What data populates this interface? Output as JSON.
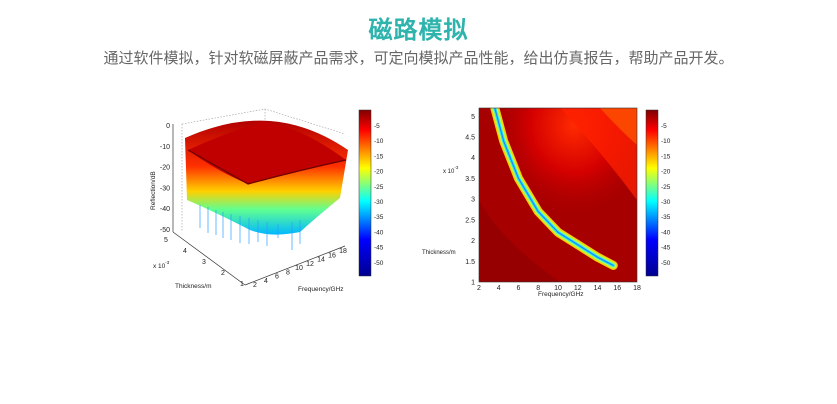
{
  "header": {
    "title": "磁路模拟",
    "subtitle": "通过软件模拟，针对软磁屏蔽产品需求，可定向模拟产品性能，给出仿真报告，帮助产品开发。"
  },
  "colors": {
    "accent": "#2fb3ad",
    "subtitle": "#666666"
  },
  "chart_data": [
    {
      "type": "surface",
      "ylabel": "Reflection/dB",
      "xlabel": "Frequency/GHz",
      "depth_label": "Thickness/m",
      "thickness_multiplier": "x 10",
      "thickness_exponent": "-3",
      "z_ticks": [
        "0",
        "-10",
        "-20",
        "-30",
        "-40",
        "-50"
      ],
      "thickness_ticks": [
        "5",
        "4",
        "3",
        "2",
        "1"
      ],
      "frequency_ticks": [
        "2",
        "4",
        "6",
        "8",
        "10",
        "12",
        "14",
        "16",
        "18"
      ],
      "colorbar_ticks": [
        "-5",
        "-10",
        "-15",
        "-20",
        "-25",
        "-30",
        "-35",
        "-40",
        "-45",
        "-50"
      ],
      "zlim": [
        -50,
        0
      ]
    },
    {
      "type": "heatmap",
      "xlabel": "Frequency/GHz",
      "ylabel": "Thickness/m",
      "y_multiplier": "x 10",
      "y_exponent": "-3",
      "x_ticks": [
        "2",
        "4",
        "6",
        "8",
        "10",
        "12",
        "14",
        "16",
        "18"
      ],
      "y_ticks": [
        "5",
        "4.5",
        "4",
        "3.5",
        "3",
        "2.5",
        "2",
        "1.5",
        "1"
      ],
      "colorbar_ticks": [
        "-5",
        "-10",
        "-15",
        "-20",
        "-25",
        "-30",
        "-35",
        "-40",
        "-45",
        "-50"
      ],
      "xlim": [
        2,
        18
      ],
      "ylim": [
        1,
        5.2
      ],
      "min_curve": [
        [
          3.6,
          5.2
        ],
        [
          4.5,
          4.4
        ],
        [
          6,
          3.5
        ],
        [
          8,
          2.7
        ],
        [
          10,
          2.2
        ],
        [
          12,
          1.9
        ],
        [
          14,
          1.6
        ],
        [
          15.6,
          1.4
        ]
      ]
    }
  ]
}
